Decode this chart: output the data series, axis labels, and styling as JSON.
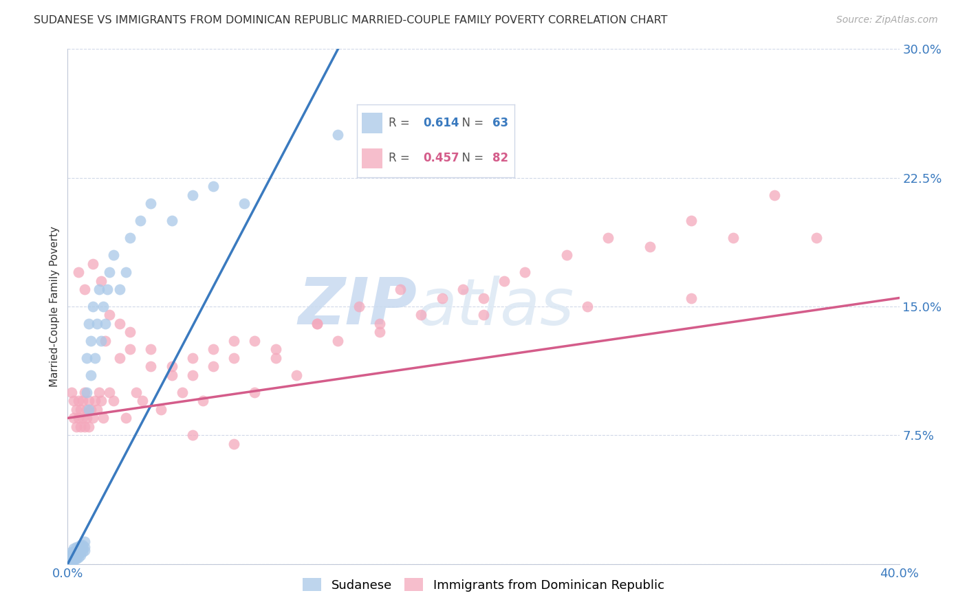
{
  "title": "SUDANESE VS IMMIGRANTS FROM DOMINICAN REPUBLIC MARRIED-COUPLE FAMILY POVERTY CORRELATION CHART",
  "source": "Source: ZipAtlas.com",
  "ylabel": "Married-Couple Family Poverty",
  "legend_labels": [
    "Sudanese",
    "Immigrants from Dominican Republic"
  ],
  "r_sudanese": 0.614,
  "n_sudanese": 63,
  "r_dominican": 0.457,
  "n_dominican": 82,
  "blue_fill": "#a8c8e8",
  "pink_fill": "#f4a8bc",
  "blue_line_color": "#3a7abf",
  "pink_line_color": "#d45c8a",
  "blue_text_color": "#3a7abf",
  "pink_text_color": "#d45c8a",
  "background_color": "#ffffff",
  "grid_color": "#d0d8e8",
  "axis_color": "#c0c8d8",
  "watermark_color": "#dce8f4",
  "title_color": "#333333",
  "source_color": "#aaaaaa",
  "xlim": [
    0.0,
    0.4
  ],
  "ylim": [
    0.0,
    0.3
  ],
  "blue_line_x0": 0.0,
  "blue_line_y0": 0.0,
  "blue_line_x1": 0.13,
  "blue_line_y1": 0.3,
  "pink_line_x0": 0.0,
  "pink_line_y0": 0.085,
  "pink_line_x1": 0.4,
  "pink_line_y1": 0.155,
  "sudanese_x": [
    0.001,
    0.001,
    0.001,
    0.001,
    0.001,
    0.002,
    0.002,
    0.002,
    0.002,
    0.002,
    0.002,
    0.002,
    0.003,
    0.003,
    0.003,
    0.003,
    0.003,
    0.003,
    0.004,
    0.004,
    0.004,
    0.004,
    0.004,
    0.005,
    0.005,
    0.005,
    0.005,
    0.006,
    0.006,
    0.006,
    0.006,
    0.007,
    0.007,
    0.007,
    0.008,
    0.008,
    0.008,
    0.009,
    0.009,
    0.01,
    0.01,
    0.011,
    0.011,
    0.012,
    0.013,
    0.014,
    0.015,
    0.016,
    0.017,
    0.018,
    0.019,
    0.02,
    0.022,
    0.025,
    0.028,
    0.03,
    0.035,
    0.04,
    0.05,
    0.06,
    0.07,
    0.085,
    0.13
  ],
  "sudanese_y": [
    0.001,
    0.002,
    0.003,
    0.004,
    0.005,
    0.001,
    0.002,
    0.003,
    0.004,
    0.005,
    0.006,
    0.007,
    0.002,
    0.003,
    0.004,
    0.006,
    0.007,
    0.009,
    0.003,
    0.004,
    0.006,
    0.008,
    0.01,
    0.004,
    0.006,
    0.008,
    0.01,
    0.005,
    0.007,
    0.009,
    0.011,
    0.007,
    0.009,
    0.011,
    0.008,
    0.01,
    0.013,
    0.1,
    0.12,
    0.09,
    0.14,
    0.11,
    0.13,
    0.15,
    0.12,
    0.14,
    0.16,
    0.13,
    0.15,
    0.14,
    0.16,
    0.17,
    0.18,
    0.16,
    0.17,
    0.19,
    0.2,
    0.21,
    0.2,
    0.215,
    0.22,
    0.21,
    0.25
  ],
  "dominican_x": [
    0.002,
    0.003,
    0.003,
    0.004,
    0.004,
    0.005,
    0.005,
    0.006,
    0.006,
    0.007,
    0.007,
    0.008,
    0.008,
    0.009,
    0.009,
    0.01,
    0.01,
    0.011,
    0.012,
    0.013,
    0.014,
    0.015,
    0.016,
    0.017,
    0.018,
    0.02,
    0.022,
    0.025,
    0.028,
    0.03,
    0.033,
    0.036,
    0.04,
    0.045,
    0.05,
    0.055,
    0.06,
    0.065,
    0.07,
    0.08,
    0.09,
    0.1,
    0.11,
    0.12,
    0.13,
    0.14,
    0.15,
    0.16,
    0.17,
    0.18,
    0.19,
    0.2,
    0.21,
    0.22,
    0.24,
    0.26,
    0.28,
    0.3,
    0.32,
    0.34,
    0.36,
    0.005,
    0.008,
    0.012,
    0.016,
    0.02,
    0.025,
    0.03,
    0.04,
    0.05,
    0.06,
    0.07,
    0.08,
    0.09,
    0.1,
    0.12,
    0.15,
    0.2,
    0.25,
    0.3,
    0.06,
    0.08
  ],
  "dominican_y": [
    0.1,
    0.095,
    0.085,
    0.09,
    0.08,
    0.095,
    0.085,
    0.09,
    0.08,
    0.095,
    0.085,
    0.1,
    0.08,
    0.09,
    0.085,
    0.095,
    0.08,
    0.09,
    0.085,
    0.095,
    0.09,
    0.1,
    0.095,
    0.085,
    0.13,
    0.1,
    0.095,
    0.12,
    0.085,
    0.125,
    0.1,
    0.095,
    0.115,
    0.09,
    0.11,
    0.1,
    0.12,
    0.095,
    0.115,
    0.13,
    0.1,
    0.12,
    0.11,
    0.14,
    0.13,
    0.15,
    0.14,
    0.16,
    0.145,
    0.155,
    0.16,
    0.155,
    0.165,
    0.17,
    0.18,
    0.19,
    0.185,
    0.2,
    0.19,
    0.215,
    0.19,
    0.17,
    0.16,
    0.175,
    0.165,
    0.145,
    0.14,
    0.135,
    0.125,
    0.115,
    0.11,
    0.125,
    0.12,
    0.13,
    0.125,
    0.14,
    0.135,
    0.145,
    0.15,
    0.155,
    0.075,
    0.07
  ]
}
